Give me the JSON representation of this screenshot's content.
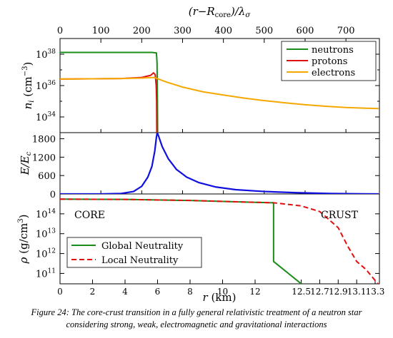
{
  "caption": {
    "line1": "Figure 24: The core-crust transition in a fully general relativistic treatment of a neutron star",
    "line2": "considering strong, weak, electromagnetic and gravitational interactions"
  },
  "chart_data": [
    {
      "type": "line",
      "panel": "top",
      "ylabel": "n_i (cm^-3)",
      "y_scale": "log",
      "ylim": [
        1e+33,
        1e+39
      ],
      "x_top_axis": {
        "label": "(r - R_core)/λ_σ",
        "ticks": [
          0,
          100,
          200,
          300,
          400,
          500,
          600,
          700
        ]
      },
      "yticks": [
        "10^38",
        "10^36",
        "10^34"
      ],
      "legend": {
        "placement": "top-right"
      },
      "series": [
        {
          "name": "neutrons",
          "color": "#1a8c1a",
          "points": [
            [
              0,
              1.3e+38
            ],
            [
              225,
              1.3e+38
            ],
            [
              236,
              1.2e+38
            ],
            [
              237.5,
              3e+37
            ],
            [
              238.5,
              1e+35
            ],
            [
              239,
              1e+33
            ]
          ]
        },
        {
          "name": "protons",
          "color": "#e01010",
          "points": [
            [
              0,
              2.6e+36
            ],
            [
              150,
              2.8e+36
            ],
            [
              200,
              3.3e+36
            ],
            [
              222,
              4.5e+36
            ],
            [
              229,
              6.5e+36
            ],
            [
              233,
              5e+36
            ],
            [
              235.5,
              1e+36
            ],
            [
              236.5,
              1e+35
            ],
            [
              237,
              1e+33
            ]
          ]
        },
        {
          "name": "electrons",
          "color": "#f5a800",
          "points": [
            [
              0,
              2.6e+36
            ],
            [
              150,
              2.8e+36
            ],
            [
              200,
              3e+36
            ],
            [
              230,
              3.3e+36
            ],
            [
              238,
              2.8e+36
            ],
            [
              260,
              1.7e+36
            ],
            [
              300,
              8e+35
            ],
            [
              350,
              4e+35
            ],
            [
              400,
              2.5e+35
            ],
            [
              450,
              1.6e+35
            ],
            [
              500,
              1.1e+35
            ],
            [
              550,
              8e+34
            ],
            [
              600,
              6e+34
            ],
            [
              650,
              4.8e+34
            ],
            [
              700,
              4e+34
            ],
            [
              780,
              3.4e+34
            ]
          ]
        }
      ]
    },
    {
      "type": "line",
      "panel": "middle",
      "ylabel": "E/E_c",
      "ylim": [
        0,
        2000
      ],
      "yticks": [
        0,
        600,
        1200,
        1800
      ],
      "series": [
        {
          "color": "#1010e0",
          "points": [
            [
              0,
              0
            ],
            [
              100,
              0
            ],
            [
              150,
              15
            ],
            [
              180,
              80
            ],
            [
              200,
              250
            ],
            [
              215,
              550
            ],
            [
              225,
              900
            ],
            [
              232,
              1400
            ],
            [
              236,
              1850
            ],
            [
              238,
              2000
            ],
            [
              241,
              1900
            ],
            [
              250,
              1550
            ],
            [
              265,
              1150
            ],
            [
              285,
              800
            ],
            [
              310,
              550
            ],
            [
              340,
              370
            ],
            [
              380,
              230
            ],
            [
              430,
              140
            ],
            [
              500,
              80
            ],
            [
              580,
              40
            ],
            [
              660,
              15
            ],
            [
              740,
              5
            ],
            [
              780,
              0
            ]
          ]
        }
      ]
    },
    {
      "type": "line",
      "panel": "bottom",
      "ylabel": "ρ (g/cm^3)",
      "xlabel": "r (km)",
      "y_scale": "log",
      "ylim": [
        30000000000.0,
        1000000000000000.0
      ],
      "xticks": [
        "0",
        "2",
        "4",
        "6",
        "8",
        "10",
        "12",
        "12.5",
        "12.7",
        "12.9",
        "13.1",
        "13.3"
      ],
      "yticks": [
        "10^14",
        "10^13",
        "10^12",
        "10^11"
      ],
      "annotations": [
        "CORE",
        "CRUST"
      ],
      "legend": {
        "placement": "bottom-left"
      },
      "series": [
        {
          "name": "Global Neutrality",
          "color": "#1a8c1a",
          "style": "solid",
          "points": [
            [
              0,
              550000000000000.0
            ],
            [
              4,
              530000000000000.0
            ],
            [
              8,
              470000000000000.0
            ],
            [
              11,
              400000000000000.0
            ],
            [
              12.2,
              360000000000000.0
            ],
            [
              12.2,
              400000000000.0
            ],
            [
              12.5,
              30000000000.0
            ]
          ]
        },
        {
          "name": "Local Neutrality",
          "color": "#e01010",
          "style": "dashed",
          "points": [
            [
              0,
              550000000000000.0
            ],
            [
              4,
              530000000000000.0
            ],
            [
              8,
              470000000000000.0
            ],
            [
              11,
              400000000000000.0
            ],
            [
              12.2,
              360000000000000.0
            ],
            [
              12.5,
              250000000000000.0
            ],
            [
              12.7,
              130000000000000.0
            ],
            [
              12.9,
              20000000000000.0
            ],
            [
              13.0,
              2500000000000.0
            ],
            [
              13.1,
              400000000000.0
            ],
            [
              13.2,
              160000000000.0
            ],
            [
              13.33,
              30000000000.0
            ]
          ]
        }
      ]
    }
  ]
}
